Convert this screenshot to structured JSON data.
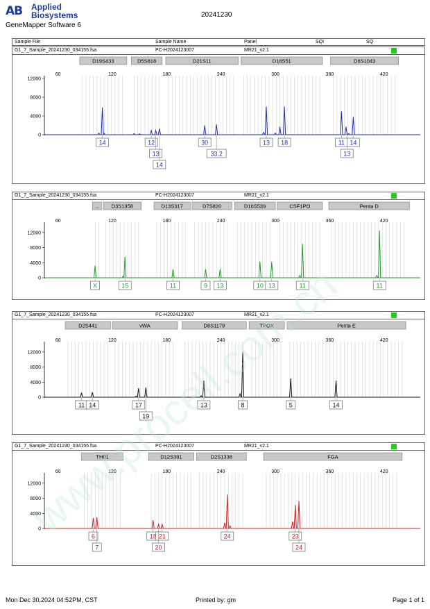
{
  "header": {
    "logo_mark": "AB",
    "logo_line1": "Applied",
    "logo_line2": "Biosystems",
    "software": "GeneMapper Software 6",
    "date": "20241230",
    "col_sample_file": "Sample File",
    "col_sample_name": "Sample Name",
    "col_panel": "Panel",
    "col_sqi": "SQI",
    "col_sq": "SQ"
  },
  "footer": {
    "datetime": "Mon Dec 30,2024 04:52PM, CST",
    "printed_by": "Printed by: gm",
    "page": "Page 1 of 1"
  },
  "watermark": "www.procell.com.cn",
  "colors": {
    "blue": "#1f2fa8",
    "green": "#1e9e2a",
    "black": "#111111",
    "red": "#cc1f1f",
    "status": "#22cc22"
  },
  "chart_data": [
    {
      "type": "line",
      "dye": "blue",
      "sample_file": "G1_7_Sample_20241230_034155.fsa",
      "sample_name": "PC-H2024123007",
      "panel": "MR21_v2.1",
      "x_ticks": [
        60,
        120,
        180,
        240,
        300,
        360,
        420
      ],
      "y_ticks": [
        0,
        4000,
        8000,
        12000
      ],
      "ylim": [
        0,
        12000
      ],
      "markers": [
        {
          "name": "D19S433",
          "x0": 84,
          "x1": 136
        },
        {
          "name": "D5S818",
          "x0": 141,
          "x1": 175
        },
        {
          "name": "D21S11",
          "x0": 179,
          "x1": 259
        },
        {
          "name": "D18S51",
          "x0": 262,
          "x1": 352
        },
        {
          "name": "D6S1043",
          "x0": 361,
          "x1": 436
        }
      ],
      "peaks": [
        {
          "x": 109,
          "y": 5800
        },
        {
          "x": 105,
          "y": 350
        },
        {
          "x": 111,
          "y": 300
        },
        {
          "x": 144,
          "y": 250
        },
        {
          "x": 150,
          "y": 200
        },
        {
          "x": 163,
          "y": 900
        },
        {
          "x": 168,
          "y": 900
        },
        {
          "x": 172,
          "y": 1300
        },
        {
          "x": 222,
          "y": 2000
        },
        {
          "x": 235,
          "y": 2200
        },
        {
          "x": 290,
          "y": 6000
        },
        {
          "x": 287,
          "y": 500
        },
        {
          "x": 305,
          "y": 1700
        },
        {
          "x": 310,
          "y": 6000
        },
        {
          "x": 300,
          "y": 350
        },
        {
          "x": 373,
          "y": 5000
        },
        {
          "x": 378,
          "y": 1700
        },
        {
          "x": 386,
          "y": 3800
        },
        {
          "x": 381,
          "y": 300
        }
      ],
      "alleles": [
        {
          "label": "14",
          "x": 109,
          "row": 0
        },
        {
          "label": "12",
          "x": 163,
          "row": 0
        },
        {
          "label": "13",
          "x": 168,
          "row": 1
        },
        {
          "label": "14",
          "x": 172,
          "row": 2
        },
        {
          "label": "30",
          "x": 222,
          "row": 0
        },
        {
          "label": "33.2",
          "x": 235,
          "row": 1
        },
        {
          "label": "13",
          "x": 290,
          "row": 0
        },
        {
          "label": "18",
          "x": 310,
          "row": 0
        },
        {
          "label": "11",
          "x": 373,
          "row": 0
        },
        {
          "label": "14",
          "x": 386,
          "row": 0
        },
        {
          "label": "13",
          "x": 379,
          "row": 1
        }
      ]
    },
    {
      "type": "line",
      "dye": "green",
      "sample_file": "G1_7_Sample_20241230_034155.fsa",
      "sample_name": "PC-H2024123007",
      "panel": "MR21_v2.1",
      "x_ticks": [
        60,
        120,
        180,
        240,
        300,
        360,
        420
      ],
      "y_ticks": [
        0,
        4000,
        8000,
        12000
      ],
      "ylim": [
        0,
        14000
      ],
      "markers": [
        {
          "name": "...",
          "x0": 98,
          "x1": 108
        },
        {
          "name": "D3S1358",
          "x0": 110,
          "x1": 152
        },
        {
          "name": "D13S317",
          "x0": 166,
          "x1": 206
        },
        {
          "name": "D7S820",
          "x0": 208,
          "x1": 252
        },
        {
          "name": "D16S539",
          "x0": 255,
          "x1": 300
        },
        {
          "name": "CSF1PO",
          "x0": 302,
          "x1": 352
        },
        {
          "name": "Penta D",
          "x0": 359,
          "x1": 448
        }
      ],
      "peaks": [
        {
          "x": 101,
          "y": 3200
        },
        {
          "x": 134,
          "y": 5500
        },
        {
          "x": 132,
          "y": 400
        },
        {
          "x": 187,
          "y": 2300
        },
        {
          "x": 223,
          "y": 2300
        },
        {
          "x": 239,
          "y": 2300
        },
        {
          "x": 283,
          "y": 4300
        },
        {
          "x": 296,
          "y": 4200
        },
        {
          "x": 330,
          "y": 9000
        },
        {
          "x": 327,
          "y": 600
        },
        {
          "x": 415,
          "y": 12500
        },
        {
          "x": 412,
          "y": 600
        }
      ],
      "alleles": [
        {
          "label": "X",
          "x": 101,
          "row": 0
        },
        {
          "label": "15",
          "x": 134,
          "row": 0
        },
        {
          "label": "11",
          "x": 187,
          "row": 0
        },
        {
          "label": "9",
          "x": 223,
          "row": 0
        },
        {
          "label": "13",
          "x": 239,
          "row": 0
        },
        {
          "label": "10",
          "x": 283,
          "row": 0
        },
        {
          "label": "13",
          "x": 296,
          "row": 0
        },
        {
          "label": "11",
          "x": 330,
          "row": 0
        },
        {
          "label": "11",
          "x": 415,
          "row": 0
        }
      ]
    },
    {
      "type": "line",
      "dye": "black",
      "sample_file": "G1_7_Sample_20241230_034155.fsa",
      "sample_name": "PC-H2024123007",
      "panel": "MR21_v2.1",
      "x_ticks": [
        60,
        120,
        180,
        240,
        300,
        360,
        420
      ],
      "y_ticks": [
        0,
        4000,
        8000,
        12000
      ],
      "ylim": [
        0,
        14000
      ],
      "markers": [
        {
          "name": "D2S441",
          "x0": 68,
          "x1": 118
        },
        {
          "name": "vWA",
          "x0": 120,
          "x1": 192
        },
        {
          "name": "D8S1179",
          "x0": 197,
          "x1": 268
        },
        {
          "name": "TPOX",
          "x0": 271,
          "x1": 310
        },
        {
          "name": "Penta E",
          "x0": 313,
          "x1": 444
        }
      ],
      "peaks": [
        {
          "x": 86,
          "y": 1200
        },
        {
          "x": 98,
          "y": 1300
        },
        {
          "x": 149,
          "y": 2400
        },
        {
          "x": 157,
          "y": 2600
        },
        {
          "x": 146,
          "y": 300
        },
        {
          "x": 221,
          "y": 4400
        },
        {
          "x": 218,
          "y": 400
        },
        {
          "x": 264,
          "y": 12000
        },
        {
          "x": 261,
          "y": 900
        },
        {
          "x": 317,
          "y": 5000
        },
        {
          "x": 367,
          "y": 4400
        }
      ],
      "alleles": [
        {
          "label": "11",
          "x": 86,
          "row": 0
        },
        {
          "label": "14",
          "x": 98,
          "row": 0
        },
        {
          "label": "17",
          "x": 149,
          "row": 0
        },
        {
          "label": "19",
          "x": 157,
          "row": 1
        },
        {
          "label": "13",
          "x": 221,
          "row": 0
        },
        {
          "label": "8",
          "x": 264,
          "row": 0
        },
        {
          "label": "5",
          "x": 317,
          "row": 0
        },
        {
          "label": "14",
          "x": 367,
          "row": 0
        }
      ]
    },
    {
      "type": "line",
      "dye": "red",
      "sample_file": "G1_7_Sample_20241230_034155.fsa",
      "sample_name": "PC-H2024123007",
      "panel": "MR21_v2.1",
      "x_ticks": [
        60,
        120,
        180,
        240,
        300,
        360,
        420
      ],
      "y_ticks": [
        0,
        4000,
        8000,
        12000
      ],
      "ylim": [
        0,
        14000
      ],
      "markers": [
        {
          "name": "TH01",
          "x0": 86,
          "x1": 132
        },
        {
          "name": "D12S391",
          "x0": 160,
          "x1": 210
        },
        {
          "name": "D2S1338",
          "x0": 213,
          "x1": 268
        },
        {
          "name": "FGA",
          "x0": 287,
          "x1": 440
        }
      ],
      "peaks": [
        {
          "x": 99,
          "y": 2800
        },
        {
          "x": 103,
          "y": 3000
        },
        {
          "x": 165,
          "y": 2200
        },
        {
          "x": 171,
          "y": 1100
        },
        {
          "x": 175,
          "y": 1100
        },
        {
          "x": 247,
          "y": 9000
        },
        {
          "x": 244,
          "y": 1500
        },
        {
          "x": 250,
          "y": 700
        },
        {
          "x": 322,
          "y": 6200
        },
        {
          "x": 326,
          "y": 7300
        },
        {
          "x": 319,
          "y": 1800
        }
      ],
      "alleles": [
        {
          "label": "6",
          "x": 99,
          "row": 0
        },
        {
          "label": "7",
          "x": 103,
          "row": 1
        },
        {
          "label": "18",
          "x": 165,
          "row": 0
        },
        {
          "label": "21",
          "x": 175,
          "row": 0
        },
        {
          "label": "20",
          "x": 171,
          "row": 1
        },
        {
          "label": "24",
          "x": 247,
          "row": 0
        },
        {
          "label": "23",
          "x": 322,
          "row": 0
        },
        {
          "label": "24",
          "x": 326,
          "row": 1
        }
      ]
    }
  ]
}
